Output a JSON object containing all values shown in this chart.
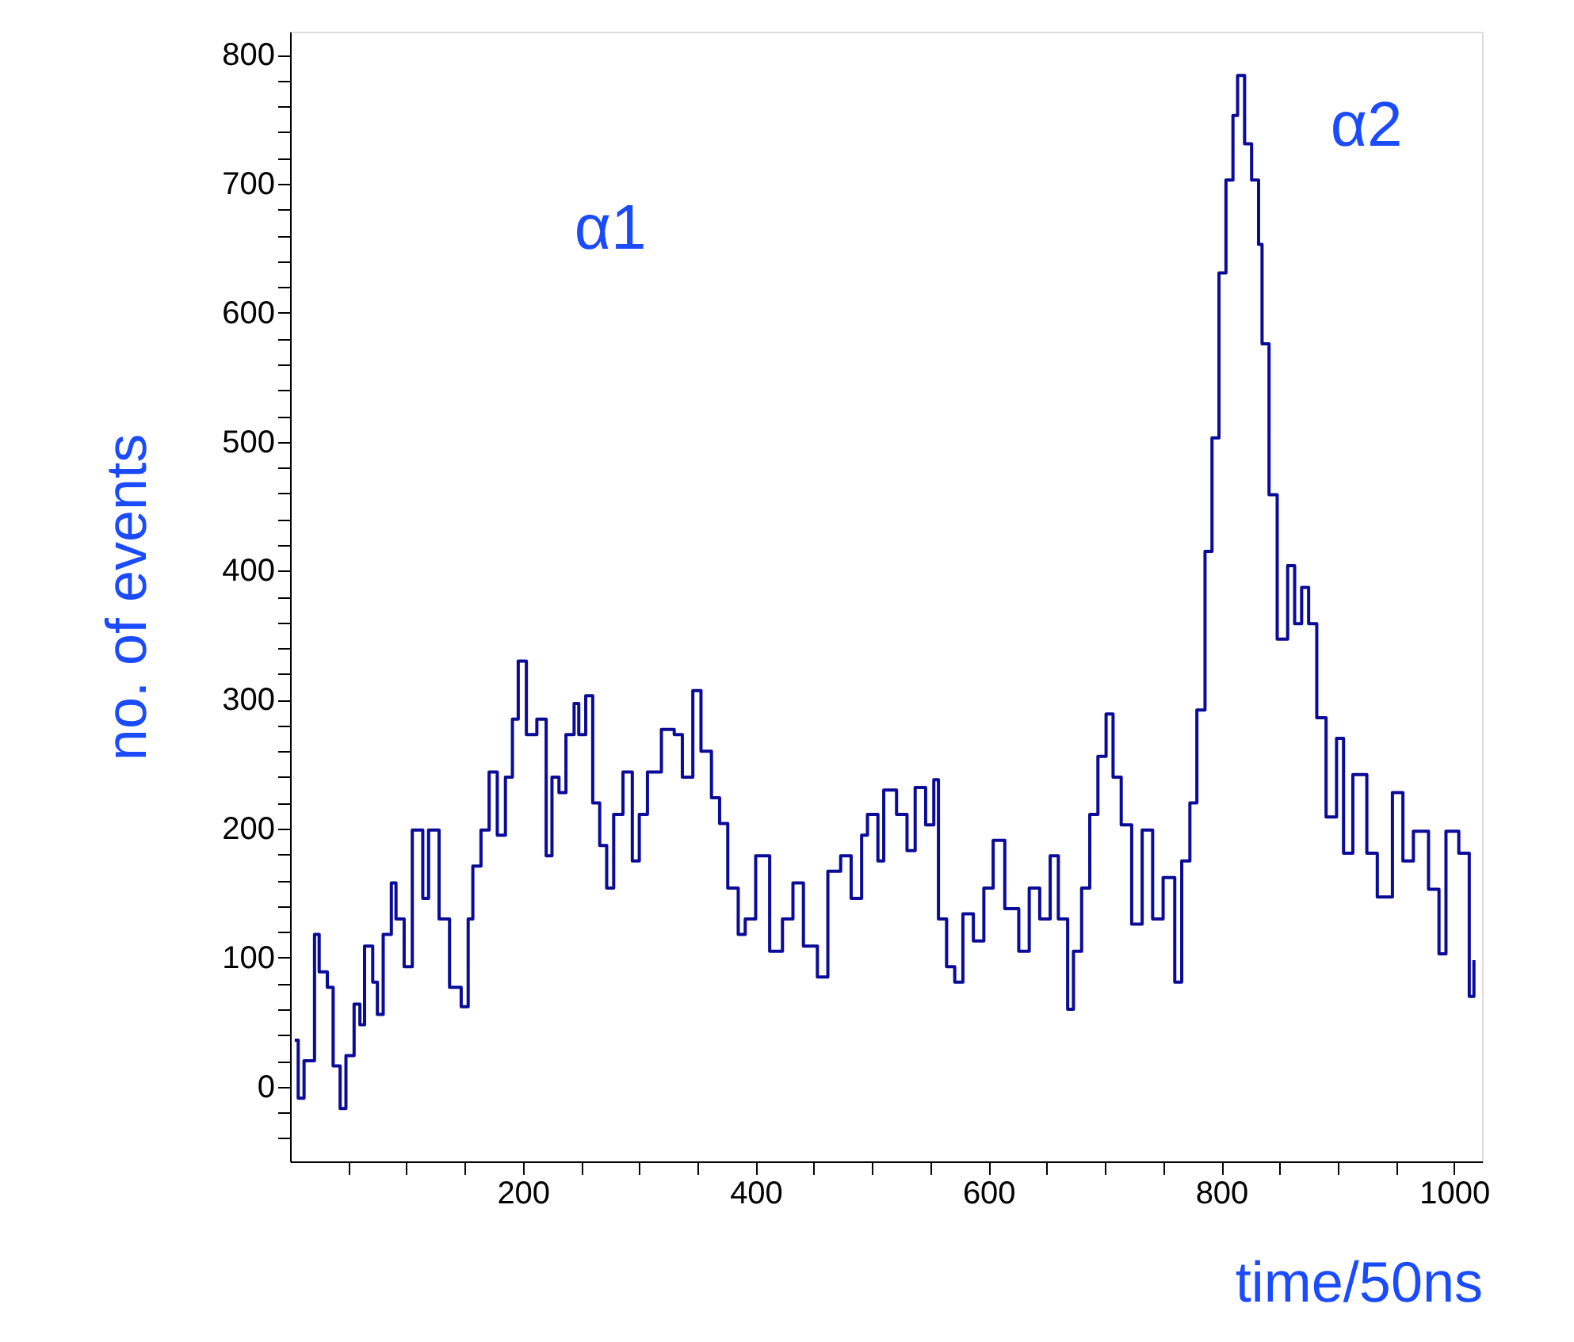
{
  "chart_data": {
    "type": "step",
    "xlabel": "time/50ns",
    "ylabel": "no. of events",
    "xlim": [
      0,
      1024
    ],
    "ylim": [
      -58,
      818
    ],
    "xticks": [
      {
        "value": 50,
        "label": null
      },
      {
        "value": 100,
        "label": null
      },
      {
        "value": 150,
        "label": null
      },
      200,
      {
        "value": 250,
        "label": null
      },
      {
        "value": 300,
        "label": null
      },
      {
        "value": 350,
        "label": null
      },
      400,
      {
        "value": 450,
        "label": null
      },
      {
        "value": 500,
        "label": null
      },
      {
        "value": 550,
        "label": null
      },
      600,
      {
        "value": 650,
        "label": null
      },
      {
        "value": 700,
        "label": null
      },
      {
        "value": 750,
        "label": null
      },
      800,
      {
        "value": 850,
        "label": null
      },
      {
        "value": 900,
        "label": null
      },
      {
        "value": 950,
        "label": null
      },
      1000
    ],
    "yticks": [
      {
        "value": -40,
        "label": null
      },
      {
        "value": -20,
        "label": null
      },
      0,
      {
        "value": 20,
        "label": null
      },
      {
        "value": 40,
        "label": null
      },
      {
        "value": 60,
        "label": null
      },
      {
        "value": 80,
        "label": null
      },
      100,
      {
        "value": 120,
        "label": null
      },
      {
        "value": 140,
        "label": null
      },
      {
        "value": 160,
        "label": null
      },
      {
        "value": 180,
        "label": null
      },
      200,
      {
        "value": 220,
        "label": null
      },
      {
        "value": 240,
        "label": null
      },
      {
        "value": 260,
        "label": null
      },
      {
        "value": 280,
        "label": null
      },
      300,
      {
        "value": 320,
        "label": null
      },
      {
        "value": 340,
        "label": null
      },
      {
        "value": 360,
        "label": null
      },
      {
        "value": 380,
        "label": null
      },
      400,
      {
        "value": 420,
        "label": null
      },
      {
        "value": 440,
        "label": null
      },
      {
        "value": 460,
        "label": null
      },
      {
        "value": 480,
        "label": null
      },
      500,
      {
        "value": 520,
        "label": null
      },
      {
        "value": 540,
        "label": null
      },
      {
        "value": 560,
        "label": null
      },
      {
        "value": 580,
        "label": null
      },
      600,
      {
        "value": 620,
        "label": null
      },
      {
        "value": 640,
        "label": null
      },
      {
        "value": 660,
        "label": null
      },
      {
        "value": 680,
        "label": null
      },
      700,
      {
        "value": 720,
        "label": null
      },
      {
        "value": 740,
        "label": null
      },
      {
        "value": 760,
        "label": null
      },
      {
        "value": 780,
        "label": null
      },
      800
    ],
    "grid": false,
    "annotations": [
      "α1",
      "α2"
    ],
    "series": [
      {
        "color": "#0b0b99",
        "x": [
          4,
          7,
          12,
          21,
          25,
          32,
          37,
          43,
          48,
          55,
          60,
          64,
          71,
          75,
          80,
          87,
          91,
          98,
          105,
          114,
          119,
          128,
          137,
          147,
          153,
          157,
          164,
          171,
          178,
          185,
          191,
          196,
          203,
          212,
          220,
          225,
          231,
          237,
          244,
          248,
          254,
          260,
          266,
          272,
          278,
          286,
          294,
          300,
          307,
          319,
          330,
          337,
          346,
          353,
          362,
          369,
          376,
          385,
          391,
          400,
          412,
          423,
          432,
          441,
          453,
          462,
          473,
          482,
          491,
          496,
          505,
          510,
          521,
          530,
          537,
          546,
          553,
          557,
          564,
          571,
          578,
          587,
          596,
          604,
          614,
          626,
          635,
          644,
          653,
          660,
          668,
          673,
          680,
          687,
          694,
          701,
          707,
          714,
          723,
          732,
          741,
          750,
          760,
          766,
          773,
          779,
          786,
          792,
          798,
          804,
          810,
          814,
          820,
          826,
          832,
          835,
          841,
          848,
          857,
          863,
          869,
          875,
          882,
          890,
          899,
          905,
          913,
          925,
          934,
          947,
          956,
          965,
          978,
          987,
          993,
          1004,
          1013,
          1017
        ],
        "values": [
          36,
          -9,
          20,
          118,
          89,
          77,
          16,
          -17,
          24,
          64,
          48,
          109,
          81,
          56,
          118,
          158,
          130,
          93,
          199,
          146,
          199,
          130,
          77,
          62,
          130,
          171,
          199,
          244,
          195,
          240,
          285,
          330,
          273,
          285,
          179,
          240,
          228,
          273,
          297,
          273,
          303,
          220,
          187,
          154,
          211,
          244,
          175,
          211,
          244,
          277,
          273,
          240,
          307,
          260,
          224,
          204,
          154,
          118,
          130,
          179,
          105,
          130,
          158,
          109,
          85,
          167,
          179,
          146,
          195,
          211,
          175,
          230,
          211,
          183,
          232,
          203,
          238,
          130,
          93,
          81,
          134,
          113,
          154,
          191,
          138,
          105,
          154,
          130,
          179,
          130,
          60,
          105,
          154,
          211,
          256,
          289,
          240,
          203,
          126,
          199,
          130,
          162,
          81,
          175,
          220,
          292,
          415,
          503,
          631,
          703,
          753,
          784,
          731,
          703,
          653,
          576,
          459,
          347,
          404,
          359,
          387,
          359,
          286,
          209,
          270,
          181,
          242,
          181,
          147,
          228,
          175,
          198,
          153,
          103,
          198,
          181,
          70,
          98
        ]
      }
    ]
  }
}
